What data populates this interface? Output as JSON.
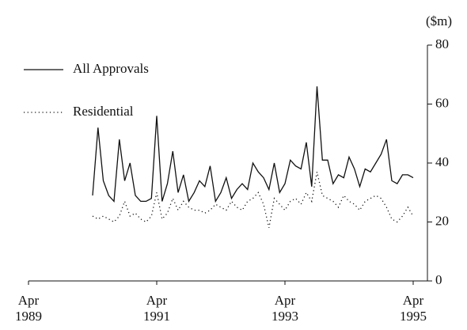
{
  "chart_data": {
    "type": "line",
    "y_label": "($m)",
    "x": [
      "1990-04",
      "1990-05",
      "1990-06",
      "1990-07",
      "1990-08",
      "1990-09",
      "1990-10",
      "1990-11",
      "1990-12",
      "1991-01",
      "1991-02",
      "1991-03",
      "1991-04",
      "1991-05",
      "1991-06",
      "1991-07",
      "1991-08",
      "1991-09",
      "1991-10",
      "1991-11",
      "1991-12",
      "1992-01",
      "1992-02",
      "1992-03",
      "1992-04",
      "1992-05",
      "1992-06",
      "1992-07",
      "1992-08",
      "1992-09",
      "1992-10",
      "1992-11",
      "1992-12",
      "1993-01",
      "1993-02",
      "1993-03",
      "1993-04",
      "1993-05",
      "1993-06",
      "1993-07",
      "1993-08",
      "1993-09",
      "1993-10",
      "1993-11",
      "1993-12",
      "1994-01",
      "1994-02",
      "1994-03",
      "1994-04",
      "1994-05",
      "1994-06",
      "1994-07",
      "1994-08",
      "1994-09",
      "1994-10",
      "1994-11",
      "1994-12",
      "1995-01",
      "1995-02",
      "1995-03",
      "1995-04"
    ],
    "series": [
      {
        "name": "All Approvals",
        "color": "#111111",
        "dash": "solid",
        "values": [
          29,
          52,
          34,
          29,
          27,
          48,
          34,
          40,
          29,
          27,
          27,
          28,
          56,
          27,
          33,
          44,
          30,
          36,
          27,
          30,
          34,
          32,
          39,
          27,
          30,
          35,
          28,
          31,
          33,
          31,
          40,
          37,
          35,
          31,
          40,
          30,
          33,
          41,
          39,
          38,
          47,
          32,
          66,
          41,
          41,
          33,
          36,
          35,
          42,
          38,
          32,
          38,
          37,
          40,
          43,
          48,
          34,
          33,
          36,
          36,
          35
        ]
      },
      {
        "name": "Residential",
        "color": "#111111",
        "dash": "dotted",
        "values": [
          22,
          21,
          22,
          21,
          20,
          22,
          27,
          22,
          23,
          21,
          20,
          22,
          30,
          21,
          23,
          28,
          24,
          27,
          25,
          24,
          24,
          23,
          24,
          26,
          25,
          24,
          27,
          25,
          24,
          27,
          28,
          30,
          26,
          18,
          28,
          26,
          24,
          27,
          28,
          26,
          30,
          27,
          37,
          29,
          28,
          27,
          25,
          29,
          27,
          26,
          24,
          27,
          28,
          29,
          28,
          25,
          21,
          20,
          22,
          25,
          22
        ]
      }
    ],
    "xlim": [
      "1989-04",
      "1995-04"
    ],
    "xticks": [
      {
        "value": "1989-04",
        "label": "Apr 1989"
      },
      {
        "value": "1991-04",
        "label": "Apr 1991"
      },
      {
        "value": "1993-04",
        "label": "Apr 1993"
      },
      {
        "value": "1995-04",
        "label": "Apr 1995"
      }
    ],
    "ylim": [
      0,
      80
    ],
    "yticks": [
      0,
      20,
      40,
      60,
      80
    ],
    "y_axis_side": "right",
    "legend": "top-left"
  }
}
